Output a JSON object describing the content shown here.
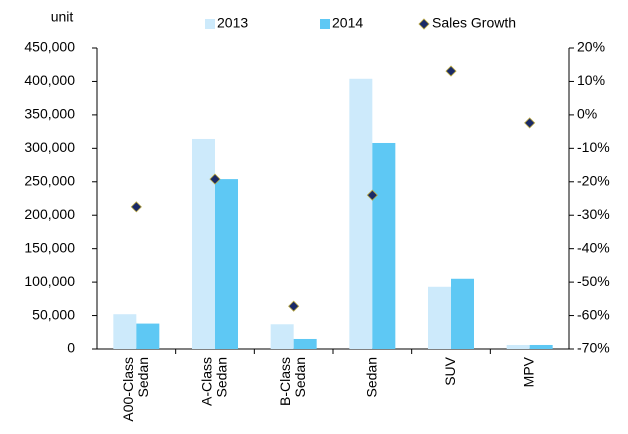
{
  "chart_data": {
    "type": "bar",
    "y_axis_label": "unit",
    "categories": [
      "A00-Class Sedan",
      "A-Class Sedan",
      "B-Class Sedan",
      "Sedan",
      "SUV",
      "MPV"
    ],
    "series": [
      {
        "name": "2013",
        "color": "#cdeafb",
        "values": [
          52000,
          314000,
          37000,
          404000,
          93000,
          6000
        ]
      },
      {
        "name": "2014",
        "color": "#5ec8f4",
        "values": [
          38000,
          254000,
          15000,
          308000,
          105000,
          6000
        ]
      },
      {
        "name": "Sales Growth",
        "color": "#1a2a66",
        "type": "scatter",
        "axis": "y2",
        "values": [
          -27.5,
          -19.2,
          -57.2,
          -24,
          13.1,
          -2.4
        ]
      }
    ],
    "ylim": [
      0,
      450000
    ],
    "yticks": [
      0,
      {
        "value": 50000,
        "label": "50,000"
      },
      {
        "value": 100000,
        "label": "100,000"
      },
      {
        "value": 150000,
        "label": "150,000"
      },
      {
        "value": 200000,
        "label": "200,000"
      },
      {
        "value": 250000,
        "label": "250,000"
      },
      {
        "value": 300000,
        "label": "300,000"
      },
      {
        "value": 350000,
        "label": "350,000"
      },
      {
        "value": 400000,
        "label": "400,000"
      },
      {
        "value": 450000,
        "label": "450,000"
      }
    ],
    "y2lim": [
      -70,
      20
    ],
    "y2ticks": [
      {
        "value": -70,
        "label": "-70%"
      },
      {
        "value": -60,
        "label": "-60%"
      },
      {
        "value": -50,
        "label": "-50%"
      },
      {
        "value": -40,
        "label": "-40%"
      },
      {
        "value": -30,
        "label": "-30%"
      },
      {
        "value": -20,
        "label": "-20%"
      },
      {
        "value": -10,
        "label": "-10%"
      },
      {
        "value": 0,
        "label": "0%"
      },
      {
        "value": 10,
        "label": "10%"
      },
      {
        "value": 20,
        "label": "20%"
      }
    ],
    "grid": false
  }
}
